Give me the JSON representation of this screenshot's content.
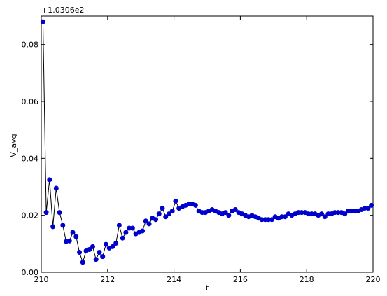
{
  "chart_data": {
    "type": "line",
    "title": "",
    "xlabel": "t",
    "ylabel": "V_avg",
    "offset_text": "+1.0306e2",
    "xlim": [
      210,
      220
    ],
    "ylim": [
      0.0,
      0.09
    ],
    "x_ticks": [
      210,
      212,
      214,
      216,
      218,
      220
    ],
    "x_tick_labels": [
      "210",
      "212",
      "214",
      "216",
      "218",
      "220"
    ],
    "y_ticks": [
      0.0,
      0.02,
      0.04,
      0.06,
      0.08
    ],
    "y_tick_labels": [
      "0.00",
      "0.02",
      "0.04",
      "0.06",
      "0.08"
    ],
    "grid": false,
    "legend": "none",
    "series": [
      {
        "color": "#0000cc",
        "line_color": "#000000",
        "x": [
          210.05,
          210.15,
          210.25,
          210.35,
          210.45,
          210.55,
          210.65,
          210.75,
          210.85,
          210.95,
          211.05,
          211.15,
          211.25,
          211.35,
          211.45,
          211.55,
          211.65,
          211.75,
          211.85,
          211.95,
          212.05,
          212.15,
          212.25,
          212.35,
          212.45,
          212.55,
          212.65,
          212.75,
          212.85,
          212.95,
          213.05,
          213.15,
          213.25,
          213.35,
          213.45,
          213.55,
          213.65,
          213.75,
          213.85,
          213.95,
          214.05,
          214.15,
          214.25,
          214.35,
          214.45,
          214.55,
          214.65,
          214.75,
          214.85,
          214.95,
          215.05,
          215.15,
          215.25,
          215.35,
          215.45,
          215.55,
          215.65,
          215.75,
          215.85,
          215.95,
          216.05,
          216.15,
          216.25,
          216.35,
          216.45,
          216.55,
          216.65,
          216.75,
          216.85,
          216.95,
          217.05,
          217.15,
          217.25,
          217.35,
          217.45,
          217.55,
          217.65,
          217.75,
          217.85,
          217.95,
          218.05,
          218.15,
          218.25,
          218.35,
          218.45,
          218.55,
          218.65,
          218.75,
          218.85,
          218.95,
          219.05,
          219.15,
          219.25,
          219.35,
          219.45,
          219.55,
          219.65,
          219.75,
          219.85,
          219.95
        ],
        "y": [
          0.088,
          0.021,
          0.0325,
          0.016,
          0.0295,
          0.021,
          0.0165,
          0.0108,
          0.011,
          0.014,
          0.0125,
          0.007,
          0.0035,
          0.0075,
          0.008,
          0.009,
          0.0045,
          0.007,
          0.0055,
          0.0098,
          0.0085,
          0.009,
          0.0102,
          0.0165,
          0.012,
          0.014,
          0.0155,
          0.0155,
          0.0135,
          0.014,
          0.0145,
          0.018,
          0.017,
          0.019,
          0.0185,
          0.0205,
          0.0225,
          0.0195,
          0.0205,
          0.0215,
          0.025,
          0.0225,
          0.023,
          0.0235,
          0.024,
          0.024,
          0.0235,
          0.0215,
          0.021,
          0.021,
          0.0215,
          0.022,
          0.0215,
          0.021,
          0.0205,
          0.021,
          0.02,
          0.0215,
          0.022,
          0.021,
          0.0205,
          0.02,
          0.0195,
          0.02,
          0.0195,
          0.019,
          0.0185,
          0.0185,
          0.0185,
          0.0185,
          0.0195,
          0.019,
          0.0195,
          0.0195,
          0.0205,
          0.02,
          0.0205,
          0.021,
          0.021,
          0.021,
          0.0205,
          0.0205,
          0.0205,
          0.02,
          0.0205,
          0.0195,
          0.0205,
          0.0205,
          0.021,
          0.021,
          0.021,
          0.0205,
          0.0215,
          0.0215,
          0.0215,
          0.0215,
          0.022,
          0.0225,
          0.0225,
          0.0235
        ]
      }
    ]
  }
}
